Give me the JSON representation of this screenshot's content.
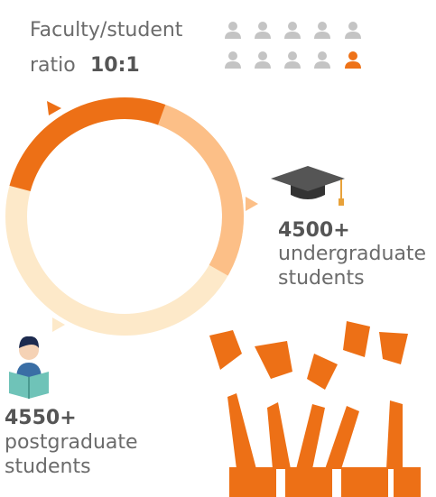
{
  "ratio": {
    "line1": "Faculty/student",
    "line2": "ratio",
    "value": "10:1"
  },
  "undergraduate": {
    "count": "4500+",
    "line1": "undergraduate",
    "line2": "students"
  },
  "postgraduate": {
    "count": "4550+",
    "line1": "postgraduate",
    "line2": "students"
  }
}
